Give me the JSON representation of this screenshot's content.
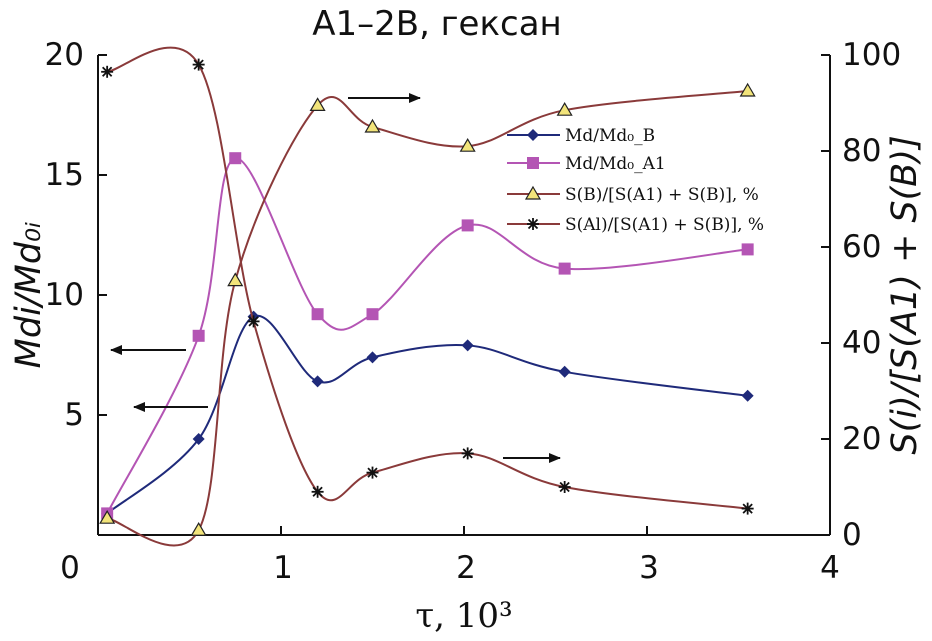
{
  "chart_data": {
    "type": "line",
    "title": "A1–2B, гексан",
    "xlabel": "τ, 10³",
    "ylabel_left": "Mdi/Md₀ᵢ",
    "ylabel_right": "S(i)/[S(A1) + S(B)]",
    "xlim": [
      0,
      4
    ],
    "ylim_left": [
      0,
      20
    ],
    "ylim_right": [
      0,
      100
    ],
    "x_ticks": [
      "0",
      "1",
      "2",
      "3",
      "4"
    ],
    "y_left_ticks": [
      "5",
      "10",
      "15",
      "20"
    ],
    "y_right_ticks": [
      "0",
      "20",
      "40",
      "60",
      "80",
      "100"
    ],
    "series": [
      {
        "name": "Md/Md₀_B",
        "axis": "left",
        "color": "#1f2a7a",
        "marker": "diamond",
        "x": [
          0.05,
          0.55,
          0.85,
          1.2,
          1.5,
          2.02,
          2.55,
          3.55
        ],
        "y": [
          0.9,
          4.0,
          9.1,
          6.4,
          7.4,
          7.9,
          6.8,
          5.8
        ]
      },
      {
        "name": "Md/Md₀_A1",
        "axis": "left",
        "color": "#b455b4",
        "marker": "square",
        "x": [
          0.05,
          0.55,
          0.75,
          1.2,
          1.5,
          2.02,
          2.55,
          3.55
        ],
        "y": [
          0.9,
          8.3,
          15.7,
          9.2,
          9.2,
          12.9,
          11.1,
          11.9
        ]
      },
      {
        "name": "S(B)/[S(A1) + S(B)], %",
        "axis": "right",
        "color": "#8a3a3a",
        "marker": "triangle",
        "x": [
          0.05,
          0.55,
          0.75,
          1.2,
          1.5,
          2.02,
          2.55,
          3.55
        ],
        "y": [
          3.5,
          1.0,
          53.0,
          89.5,
          85.0,
          81.0,
          88.5,
          92.5
        ]
      },
      {
        "name": "S(Al)/[S(A1) + S(B)], %",
        "axis": "right",
        "color": "#8a3a3a",
        "marker": "asterisk",
        "x": [
          0.05,
          0.55,
          0.85,
          1.2,
          1.5,
          2.02,
          2.55,
          3.55
        ],
        "y": [
          96.5,
          98.0,
          44.5,
          9.0,
          13.0,
          17.0,
          10.0,
          5.5
        ]
      }
    ],
    "legend": [
      {
        "label": "Md/Md₀_B"
      },
      {
        "label": "Md/Md₀_A1"
      },
      {
        "label": "S(B)/[S(A1) + S(B)], %"
      },
      {
        "label": "S(Al)/[S(A1) + S(B)], %"
      }
    ],
    "legend_position": "upper-right",
    "grid": false
  }
}
